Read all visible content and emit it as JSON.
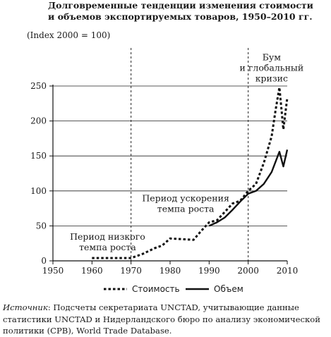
{
  "title_line1": "Долговременные тенденции изменения стоимости",
  "title_line2": "и объемов экспортируемых товаров, 1950–2010 гг.",
  "source_label": "Источник",
  "source_text": ": Подсчеты секретариата UNCTAD, учитывающие данные статистики UNCTAD и Нидерландского бюро по анализу экономической политики (CPB), World Trade Database.",
  "chart_data": {
    "type": "line",
    "ylabel": "(Index 2000 = 100)",
    "xlim": [
      1950,
      2010
    ],
    "ylim": [
      0,
      250
    ],
    "x_ticks": [
      1950,
      1960,
      1970,
      1980,
      1990,
      2000,
      2010
    ],
    "y_ticks": [
      0,
      50,
      100,
      150,
      200,
      250
    ],
    "grid": "horizontal",
    "vlines": [
      1970,
      2000
    ],
    "annotations": [
      {
        "lines": [
          "Период низкого",
          "темпа роста"
        ],
        "x": 1964,
        "y": 30
      },
      {
        "lines": [
          "Период ускорения",
          "темпа роста"
        ],
        "x": 1984,
        "y": 85
      },
      {
        "lines": [
          "Бум",
          "и глобальный",
          "кризис"
        ],
        "x": 2006,
        "y": 287
      }
    ],
    "legend_position": "bottom",
    "series": [
      {
        "name": "Стоимость",
        "style": "dotted",
        "x": [
          1960,
          1965,
          1970,
          1973,
          1976,
          1978,
          1980,
          1983,
          1986,
          1988,
          1990,
          1992,
          1994,
          1996,
          1998,
          2000,
          2002,
          2004,
          2006,
          2007,
          2008,
          2009,
          2010
        ],
        "y": [
          4,
          4,
          4,
          10,
          18,
          22,
          32,
          31,
          30,
          43,
          55,
          58,
          70,
          82,
          86,
          100,
          110,
          140,
          178,
          215,
          248,
          188,
          233
        ]
      },
      {
        "name": "Объем",
        "style": "solid",
        "x": [
          1990,
          1992,
          1994,
          1996,
          1998,
          2000,
          2002,
          2004,
          2006,
          2008,
          2009,
          2010
        ],
        "y": [
          50,
          55,
          62,
          73,
          85,
          96,
          100,
          110,
          127,
          156,
          135,
          159
        ]
      }
    ]
  }
}
